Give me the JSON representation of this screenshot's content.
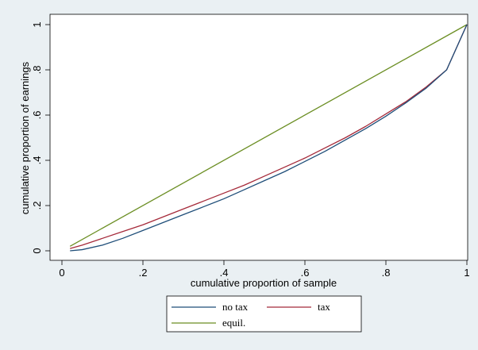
{
  "chart_data": {
    "type": "line",
    "xlabel": "cumulative proportion of sample",
    "ylabel": "cumulative proportion of earnings",
    "xlim": [
      0,
      1
    ],
    "ylim": [
      0,
      1
    ],
    "x_ticks": [
      0,
      0.2,
      0.4,
      0.6,
      0.8,
      1
    ],
    "x_tick_labels": [
      "0",
      ".2",
      ".4",
      ".6",
      ".8",
      "1"
    ],
    "y_ticks": [
      0,
      0.2,
      0.4,
      0.6,
      0.8,
      1
    ],
    "y_tick_labels": [
      "0",
      ".2",
      ".4",
      ".6",
      ".8",
      "1"
    ],
    "grid": false,
    "legend_position": "bottom",
    "series": [
      {
        "name": "no tax",
        "color": "#1f4e79",
        "x": [
          0.02,
          0.05,
          0.1,
          0.15,
          0.2,
          0.25,
          0.3,
          0.35,
          0.4,
          0.45,
          0.5,
          0.55,
          0.6,
          0.65,
          0.7,
          0.75,
          0.8,
          0.85,
          0.9,
          0.95,
          1.0
        ],
        "y": [
          0.0,
          0.005,
          0.025,
          0.055,
          0.09,
          0.125,
          0.16,
          0.195,
          0.23,
          0.27,
          0.31,
          0.35,
          0.395,
          0.44,
          0.49,
          0.54,
          0.595,
          0.655,
          0.72,
          0.8,
          1.0
        ]
      },
      {
        "name": "tax",
        "color": "#a52a3a",
        "x": [
          0.02,
          0.05,
          0.1,
          0.15,
          0.2,
          0.25,
          0.3,
          0.35,
          0.4,
          0.45,
          0.5,
          0.55,
          0.6,
          0.65,
          0.7,
          0.75,
          0.8,
          0.85,
          0.9,
          0.95,
          1.0
        ],
        "y": [
          0.01,
          0.025,
          0.055,
          0.085,
          0.115,
          0.15,
          0.185,
          0.22,
          0.255,
          0.29,
          0.33,
          0.37,
          0.41,
          0.455,
          0.5,
          0.55,
          0.605,
          0.66,
          0.725,
          0.8,
          1.0
        ]
      },
      {
        "name": "equil.",
        "color": "#6b8e23",
        "x": [
          0.02,
          1.0
        ],
        "y": [
          0.02,
          1.0
        ]
      }
    ]
  }
}
